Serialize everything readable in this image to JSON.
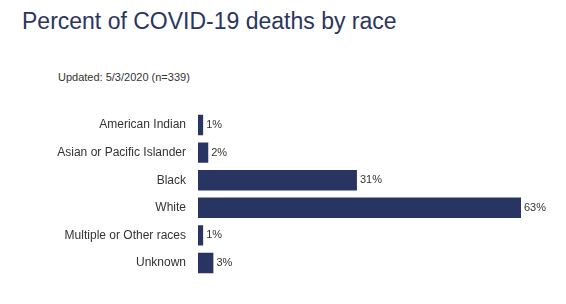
{
  "chart_data": {
    "type": "bar",
    "orientation": "horizontal",
    "title": "Percent of COVID-19 deaths by race",
    "subtitle": "Updated: 5/3/2020 (n=339)",
    "categories": [
      "American Indian",
      "Asian or Pacific Islander",
      "Black",
      "White",
      "Multiple or Other races",
      "Unknown"
    ],
    "values": [
      1,
      2,
      31,
      63,
      1,
      3
    ],
    "value_labels": [
      "1%",
      "2%",
      "31%",
      "63%",
      "1%",
      "3%"
    ],
    "color": "#283462",
    "xlim": [
      0,
      63
    ],
    "grid": false,
    "data_labels": true,
    "tick_labels": "y"
  }
}
